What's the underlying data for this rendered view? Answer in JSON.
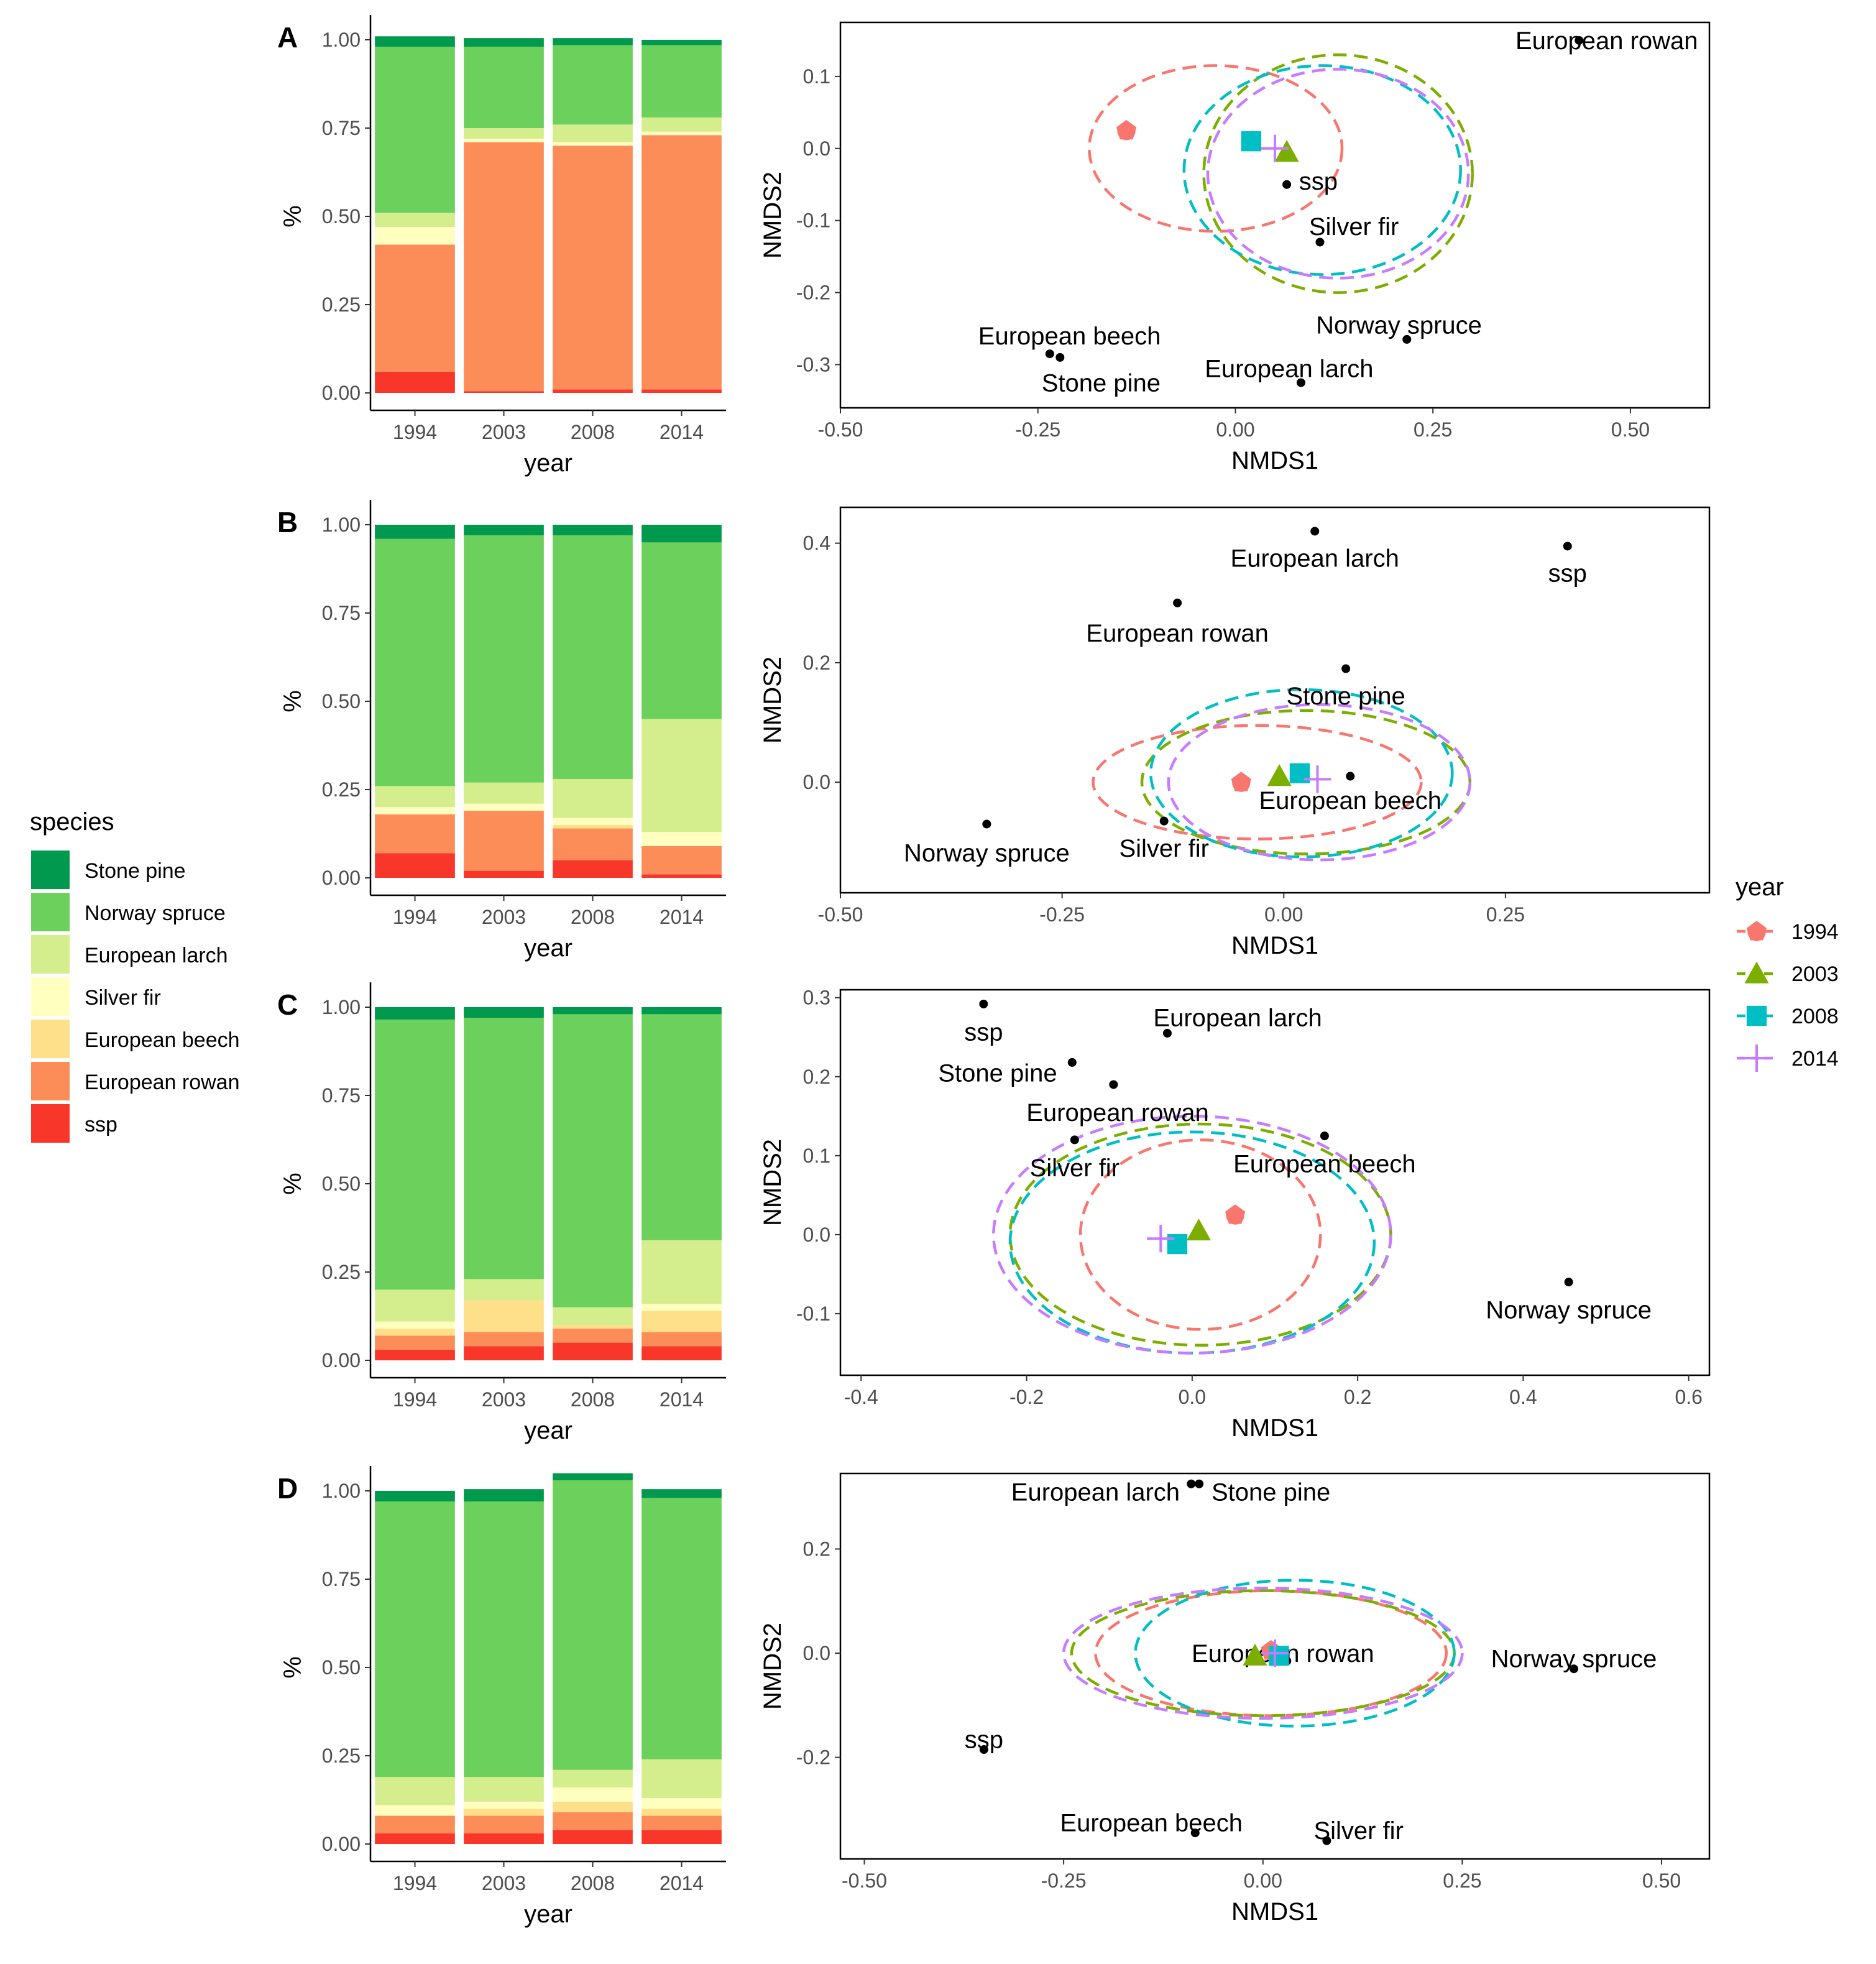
{
  "colors": {
    "species": {
      "Stone pine": "#00994D",
      "Norway spruce": "#6CD05C",
      "European larch": "#D4EE8E",
      "Silver fir": "#FFFFBF",
      "European beech": "#FEE08B",
      "European rowan": "#FC8D59",
      "ssp": "#F8372A"
    },
    "year": {
      "1994": "#F8766D",
      "2003": "#7CAE00",
      "2008": "#00BFC4",
      "2014": "#C77CFF"
    }
  },
  "legend_species": {
    "title": "species",
    "items": [
      "Stone pine",
      "Norway spruce",
      "European larch",
      "Silver fir",
      "European beech",
      "European rowan",
      "ssp"
    ]
  },
  "legend_year": {
    "title": "year",
    "items": [
      {
        "label": "1994",
        "shape": "circle"
      },
      {
        "label": "2003",
        "shape": "triangle"
      },
      {
        "label": "2008",
        "shape": "square"
      },
      {
        "label": "2014",
        "shape": "plus"
      }
    ]
  },
  "chart_data": [
    {
      "panel": "A",
      "type": "bar",
      "stacked": true,
      "xlabel": "year",
      "ylabel": "%",
      "ylim": [
        0,
        1
      ],
      "yticks": [
        "0.00",
        "0.25",
        "0.50",
        "0.75",
        "1.00"
      ],
      "categories": [
        "1994",
        "2003",
        "2008",
        "2014"
      ],
      "series": [
        {
          "name": "ssp",
          "values": [
            0.06,
            0.005,
            0.01,
            0.01
          ]
        },
        {
          "name": "European rowan",
          "values": [
            0.36,
            0.705,
            0.69,
            0.72
          ]
        },
        {
          "name": "European beech",
          "values": [
            0.0,
            0.0,
            0.0,
            0.0
          ]
        },
        {
          "name": "Silver fir",
          "values": [
            0.05,
            0.01,
            0.01,
            0.01
          ]
        },
        {
          "name": "European larch",
          "values": [
            0.04,
            0.03,
            0.05,
            0.04
          ]
        },
        {
          "name": "Norway spruce",
          "values": [
            0.47,
            0.23,
            0.225,
            0.205
          ]
        },
        {
          "name": "Stone pine",
          "values": [
            0.03,
            0.025,
            0.02,
            0.015
          ]
        }
      ]
    },
    {
      "panel": "A",
      "type": "scatter",
      "xlabel": "NMDS1",
      "ylabel": "NMDS2",
      "xlim": [
        -0.5,
        0.6
      ],
      "ylim": [
        -0.36,
        0.175
      ],
      "xticks": [
        -0.5,
        -0.25,
        0.0,
        0.25,
        0.5
      ],
      "xtick_labels": [
        "-0.50",
        "-0.25",
        "0.00",
        "0.25",
        "0.50"
      ],
      "yticks": [
        -0.3,
        -0.2,
        -0.1,
        0.0,
        0.1
      ],
      "ytick_labels": [
        "-0.3",
        "-0.2",
        "-0.1",
        "0.0",
        "0.1"
      ],
      "species_points": [
        {
          "label": "European rowan",
          "x": 0.435,
          "y": 0.15,
          "lx": 0.47,
          "ly": 0.15
        },
        {
          "label": "ssp",
          "x": 0.065,
          "y": -0.05,
          "lx": 0.105,
          "ly": -0.045
        },
        {
          "label": "Silver fir",
          "x": 0.107,
          "y": -0.13,
          "lx": 0.15,
          "ly": -0.108
        },
        {
          "label": "Norway spruce",
          "x": 0.217,
          "y": -0.265,
          "lx": 0.207,
          "ly": -0.245
        },
        {
          "label": "European beech",
          "x": -0.235,
          "y": -0.285,
          "lx": -0.21,
          "ly": -0.26
        },
        {
          "label": "Stone pine",
          "x": -0.222,
          "y": -0.29,
          "lx": -0.17,
          "ly": -0.325
        },
        {
          "label": "European larch",
          "x": 0.083,
          "y": -0.325,
          "lx": 0.068,
          "ly": -0.305
        }
      ],
      "centroids": [
        {
          "year": "1994",
          "x": -0.138,
          "y": 0.025
        },
        {
          "year": "2003",
          "x": 0.065,
          "y": -0.005
        },
        {
          "year": "2008",
          "x": 0.02,
          "y": 0.01
        },
        {
          "year": "2014",
          "x": 0.05,
          "y": 0.0
        }
      ],
      "ellipses": [
        {
          "year": "1994",
          "cx": -0.025,
          "cy": 0.0,
          "rx": 0.16,
          "ry": 0.115
        },
        {
          "year": "2003",
          "cx": 0.13,
          "cy": -0.035,
          "rx": 0.17,
          "ry": 0.165
        },
        {
          "year": "2008",
          "cx": 0.11,
          "cy": -0.03,
          "rx": 0.175,
          "ry": 0.145
        },
        {
          "year": "2014",
          "cx": 0.13,
          "cy": -0.035,
          "rx": 0.165,
          "ry": 0.145
        }
      ]
    },
    {
      "panel": "B",
      "type": "bar",
      "stacked": true,
      "xlabel": "year",
      "ylabel": "%",
      "ylim": [
        0,
        1
      ],
      "yticks": [
        "0.00",
        "0.25",
        "0.50",
        "0.75",
        "1.00"
      ],
      "categories": [
        "1994",
        "2003",
        "2008",
        "2014"
      ],
      "series": [
        {
          "name": "ssp",
          "values": [
            0.07,
            0.02,
            0.05,
            0.01
          ]
        },
        {
          "name": "European rowan",
          "values": [
            0.11,
            0.17,
            0.09,
            0.08
          ]
        },
        {
          "name": "European beech",
          "values": [
            0.0,
            0.0,
            0.01,
            0.0
          ]
        },
        {
          "name": "Silver fir",
          "values": [
            0.02,
            0.02,
            0.02,
            0.04
          ]
        },
        {
          "name": "European larch",
          "values": [
            0.06,
            0.06,
            0.11,
            0.32
          ]
        },
        {
          "name": "Norway spruce",
          "values": [
            0.7,
            0.7,
            0.69,
            0.5
          ]
        },
        {
          "name": "Stone pine",
          "values": [
            0.04,
            0.03,
            0.03,
            0.05
          ]
        }
      ]
    },
    {
      "panel": "B",
      "type": "scatter",
      "xlabel": "NMDS1",
      "ylabel": "NMDS2",
      "xlim": [
        -0.5,
        0.48
      ],
      "ylim": [
        -0.185,
        0.46
      ],
      "xticks": [
        -0.5,
        -0.25,
        0.0,
        0.25
      ],
      "xtick_labels": [
        "-0.50",
        "-0.25",
        "0.00",
        "0.25"
      ],
      "yticks": [
        0.0,
        0.2,
        0.4
      ],
      "ytick_labels": [
        "0.0",
        "0.2",
        "0.4"
      ],
      "species_points": [
        {
          "label": "European larch",
          "x": 0.035,
          "y": 0.42,
          "lx": 0.035,
          "ly": 0.375
        },
        {
          "label": "ssp",
          "x": 0.32,
          "y": 0.395,
          "lx": 0.32,
          "ly": 0.35
        },
        {
          "label": "European rowan",
          "x": -0.12,
          "y": 0.3,
          "lx": -0.12,
          "ly": 0.25
        },
        {
          "label": "Stone pine",
          "x": 0.07,
          "y": 0.19,
          "lx": 0.07,
          "ly": 0.145
        },
        {
          "label": "European beech",
          "x": 0.075,
          "y": 0.01,
          "lx": 0.075,
          "ly": -0.03
        },
        {
          "label": "Silver fir",
          "x": -0.135,
          "y": -0.065,
          "lx": -0.135,
          "ly": -0.11
        },
        {
          "label": "Norway spruce",
          "x": -0.335,
          "y": -0.07,
          "lx": -0.335,
          "ly": -0.118
        }
      ],
      "centroids": [
        {
          "year": "1994",
          "x": -0.048,
          "y": 0.0
        },
        {
          "year": "2003",
          "x": -0.005,
          "y": 0.01
        },
        {
          "year": "2008",
          "x": 0.018,
          "y": 0.015
        },
        {
          "year": "2014",
          "x": 0.038,
          "y": 0.005
        }
      ],
      "ellipses": [
        {
          "year": "1994",
          "cx": -0.03,
          "cy": 0.0,
          "rx": 0.185,
          "ry": 0.095
        },
        {
          "year": "2003",
          "cx": 0.025,
          "cy": 0.0,
          "rx": 0.185,
          "ry": 0.12
        },
        {
          "year": "2008",
          "cx": 0.02,
          "cy": 0.015,
          "rx": 0.17,
          "ry": 0.14
        },
        {
          "year": "2014",
          "cx": 0.04,
          "cy": 0.0,
          "rx": 0.17,
          "ry": 0.13
        }
      ]
    },
    {
      "panel": "C",
      "type": "bar",
      "stacked": true,
      "xlabel": "year",
      "ylabel": "%",
      "ylim": [
        0,
        1
      ],
      "yticks": [
        "0.00",
        "0.25",
        "0.50",
        "0.75",
        "1.00"
      ],
      "categories": [
        "1994",
        "2003",
        "2008",
        "2014"
      ],
      "series": [
        {
          "name": "ssp",
          "values": [
            0.03,
            0.04,
            0.05,
            0.04
          ]
        },
        {
          "name": "European rowan",
          "values": [
            0.04,
            0.04,
            0.04,
            0.04
          ]
        },
        {
          "name": "European beech",
          "values": [
            0.02,
            0.09,
            0.01,
            0.06
          ]
        },
        {
          "name": "Silver fir",
          "values": [
            0.02,
            0.0,
            0.0,
            0.02
          ]
        },
        {
          "name": "European larch",
          "values": [
            0.09,
            0.06,
            0.05,
            0.18
          ]
        },
        {
          "name": "Norway spruce",
          "values": [
            0.765,
            0.74,
            0.83,
            0.64
          ]
        },
        {
          "name": "Stone pine",
          "values": [
            0.035,
            0.03,
            0.02,
            0.02
          ]
        }
      ]
    },
    {
      "panel": "C",
      "type": "scatter",
      "xlabel": "NMDS1",
      "ylabel": "NMDS2",
      "xlim": [
        -0.425,
        0.625
      ],
      "ylim": [
        -0.178,
        0.31
      ],
      "xticks": [
        -0.4,
        -0.2,
        0.0,
        0.2,
        0.4,
        0.6
      ],
      "xtick_labels": [
        "-0.4",
        "-0.2",
        "0.0",
        "0.2",
        "0.4",
        "0.6"
      ],
      "yticks": [
        -0.1,
        0.0,
        0.1,
        0.2,
        0.3
      ],
      "ytick_labels": [
        "-0.1",
        "0.0",
        "0.1",
        "0.2",
        "0.3"
      ],
      "species_points": [
        {
          "label": "ssp",
          "x": -0.252,
          "y": 0.292,
          "lx": -0.252,
          "ly": 0.257
        },
        {
          "label": "European larch",
          "x": -0.03,
          "y": 0.255,
          "lx": 0.055,
          "ly": 0.275
        },
        {
          "label": "Stone pine",
          "x": -0.145,
          "y": 0.218,
          "lx": -0.235,
          "ly": 0.205
        },
        {
          "label": "European rowan",
          "x": -0.095,
          "y": 0.19,
          "lx": -0.09,
          "ly": 0.155
        },
        {
          "label": "Silver fir",
          "x": -0.142,
          "y": 0.12,
          "lx": -0.142,
          "ly": 0.085
        },
        {
          "label": "European beech",
          "x": 0.16,
          "y": 0.125,
          "lx": 0.16,
          "ly": 0.09
        },
        {
          "label": "Norway spruce",
          "x": 0.455,
          "y": -0.06,
          "lx": 0.455,
          "ly": -0.095
        }
      ],
      "centroids": [
        {
          "year": "1994",
          "x": 0.052,
          "y": 0.025
        },
        {
          "year": "2003",
          "x": 0.008,
          "y": 0.005
        },
        {
          "year": "2008",
          "x": -0.018,
          "y": -0.012
        },
        {
          "year": "2014",
          "x": -0.038,
          "y": -0.005
        }
      ],
      "ellipses": [
        {
          "year": "1994",
          "cx": 0.01,
          "cy": 0.0,
          "rx": 0.145,
          "ry": 0.12
        },
        {
          "year": "2003",
          "cx": 0.01,
          "cy": 0.0,
          "rx": 0.23,
          "ry": 0.14
        },
        {
          "year": "2008",
          "cx": 0.0,
          "cy": -0.01,
          "rx": 0.22,
          "ry": 0.14
        },
        {
          "year": "2014",
          "cx": 0.0,
          "cy": 0.0,
          "rx": 0.24,
          "ry": 0.15
        }
      ]
    },
    {
      "panel": "D",
      "type": "bar",
      "stacked": true,
      "xlabel": "year",
      "ylabel": "%",
      "ylim": [
        0,
        1
      ],
      "yticks": [
        "0.00",
        "0.25",
        "0.50",
        "0.75",
        "1.00"
      ],
      "categories": [
        "1994",
        "2003",
        "2008",
        "2014"
      ],
      "series": [
        {
          "name": "ssp",
          "values": [
            0.03,
            0.03,
            0.04,
            0.04
          ]
        },
        {
          "name": "European rowan",
          "values": [
            0.05,
            0.05,
            0.05,
            0.04
          ]
        },
        {
          "name": "European beech",
          "values": [
            0.0,
            0.02,
            0.03,
            0.02
          ]
        },
        {
          "name": "Silver fir",
          "values": [
            0.03,
            0.02,
            0.04,
            0.03
          ]
        },
        {
          "name": "European larch",
          "values": [
            0.08,
            0.07,
            0.05,
            0.11
          ]
        },
        {
          "name": "Norway spruce",
          "values": [
            0.78,
            0.78,
            0.82,
            0.74
          ]
        },
        {
          "name": "Stone pine",
          "values": [
            0.03,
            0.035,
            0.02,
            0.025
          ]
        }
      ]
    },
    {
      "panel": "D",
      "type": "scatter",
      "xlabel": "NMDS1",
      "ylabel": "NMDS2",
      "xlim": [
        -0.53,
        0.56
      ],
      "ylim": [
        -0.395,
        0.345
      ],
      "xticks": [
        -0.5,
        -0.25,
        0.0,
        0.25,
        0.5
      ],
      "xtick_labels": [
        "-0.50",
        "-0.25",
        "0.00",
        "0.25",
        "0.50"
      ],
      "yticks": [
        -0.2,
        0.0,
        0.2
      ],
      "ytick_labels": [
        "-0.2",
        "0.0",
        "0.2"
      ],
      "species_points": [
        {
          "label": "European larch",
          "x": -0.09,
          "y": 0.325,
          "lx": -0.21,
          "ly": 0.31
        },
        {
          "label": "Stone pine",
          "x": -0.08,
          "y": 0.325,
          "lx": 0.01,
          "ly": 0.31
        },
        {
          "label": "European rowan",
          "x": 0.03,
          "y": -0.015,
          "lx": 0.025,
          "ly": 0.0
        },
        {
          "label": "Norway spruce",
          "x": 0.39,
          "y": -0.03,
          "lx": 0.39,
          "ly": -0.01
        },
        {
          "label": "ssp",
          "x": -0.35,
          "y": -0.185,
          "lx": -0.35,
          "ly": -0.165
        },
        {
          "label": "European beech",
          "x": -0.085,
          "y": -0.345,
          "lx": -0.14,
          "ly": -0.325
        },
        {
          "label": "Silver fir",
          "x": 0.08,
          "y": -0.36,
          "lx": 0.12,
          "ly": -0.34
        }
      ],
      "centroids": [
        {
          "year": "1994",
          "x": 0.01,
          "y": 0.005
        },
        {
          "year": "2003",
          "x": -0.01,
          "y": -0.005
        },
        {
          "year": "2008",
          "x": 0.02,
          "y": -0.005
        },
        {
          "year": "2014",
          "x": 0.015,
          "y": 0.0
        }
      ],
      "ellipses": [
        {
          "year": "1994",
          "cx": 0.01,
          "cy": 0.0,
          "rx": 0.22,
          "ry": 0.12
        },
        {
          "year": "2003",
          "cx": 0.0,
          "cy": 0.0,
          "rx": 0.24,
          "ry": 0.12
        },
        {
          "year": "2008",
          "cx": 0.04,
          "cy": 0.0,
          "rx": 0.2,
          "ry": 0.14
        },
        {
          "year": "2014",
          "cx": 0.0,
          "cy": 0.0,
          "rx": 0.25,
          "ry": 0.125
        }
      ]
    }
  ]
}
